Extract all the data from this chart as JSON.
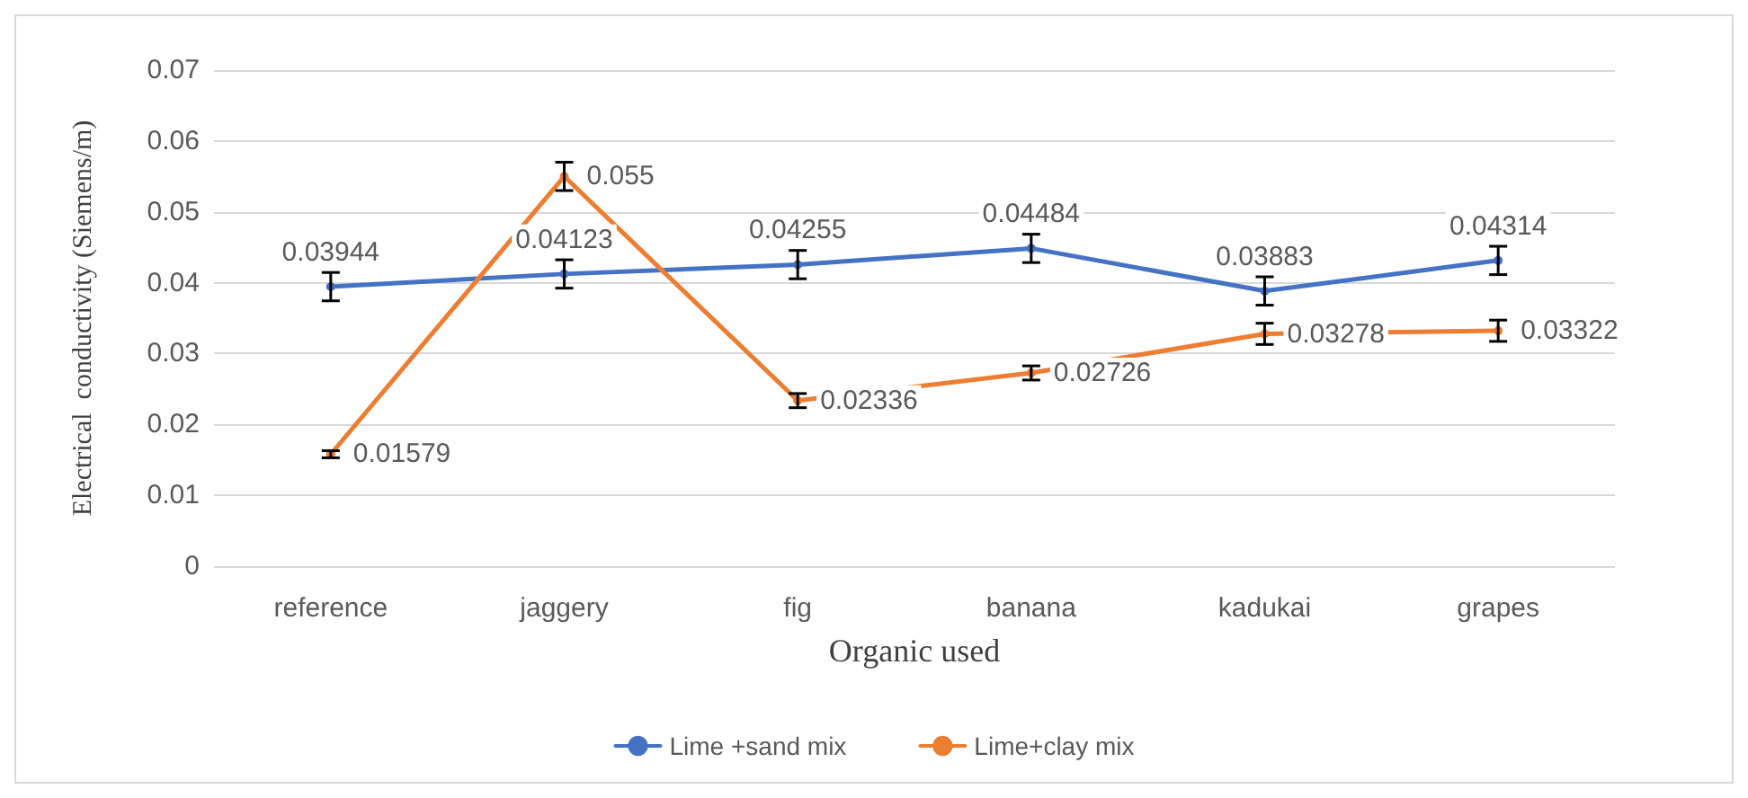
{
  "chart_data": {
    "type": "line",
    "xlabel": "Organic used",
    "ylabel": "Electrical  conductivity (Siemens/m)",
    "categories": [
      "reference",
      "jaggery",
      "fig",
      "banana",
      "kadukai",
      "grapes"
    ],
    "series": [
      {
        "name": "Lime +sand mix",
        "color": "#4472c4",
        "values": [
          0.03944,
          0.04123,
          0.04255,
          0.04484,
          0.03883,
          0.04314
        ],
        "errors": [
          0.002,
          0.002,
          0.002,
          0.002,
          0.002,
          0.002
        ]
      },
      {
        "name": "Lime+clay mix",
        "color": "#ed7d31",
        "values": [
          0.01579,
          0.055,
          0.02336,
          0.02726,
          0.03278,
          0.03322
        ],
        "errors": [
          0.0005,
          0.002,
          0.001,
          0.001,
          0.0015,
          0.0015
        ]
      }
    ],
    "ylim": [
      0,
      0.07
    ],
    "yticks": [
      0,
      0.01,
      0.02,
      0.03,
      0.04,
      0.05,
      0.06,
      0.07
    ],
    "grid": "y",
    "legend": "bottom",
    "marker": "circle",
    "line_style": "solid",
    "data_labels": true
  }
}
